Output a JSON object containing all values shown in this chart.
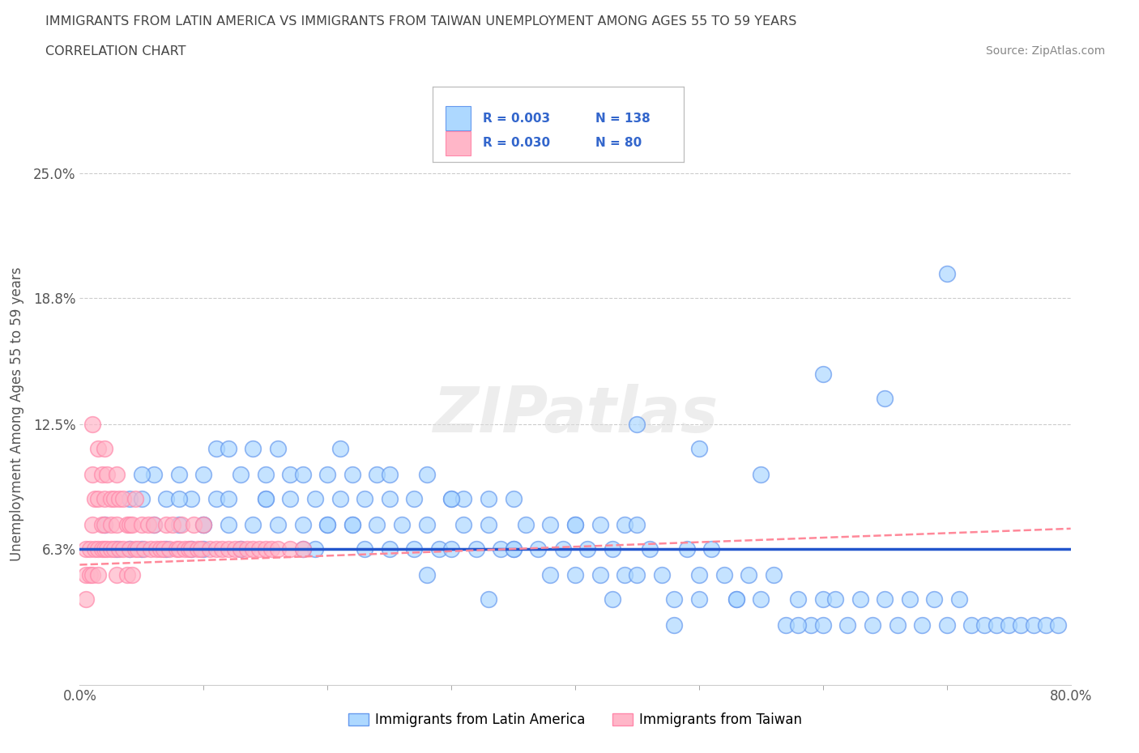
{
  "title_line1": "IMMIGRANTS FROM LATIN AMERICA VS IMMIGRANTS FROM TAIWAN UNEMPLOYMENT AMONG AGES 55 TO 59 YEARS",
  "title_line2": "CORRELATION CHART",
  "source_text": "Source: ZipAtlas.com",
  "ylabel": "Unemployment Among Ages 55 to 59 years",
  "xlim": [
    0.0,
    0.8
  ],
  "ylim": [
    -0.005,
    0.265
  ],
  "ytick_values": [
    0.0,
    0.063,
    0.125,
    0.188,
    0.25
  ],
  "ytick_labels": [
    "",
    "6.3%",
    "12.5%",
    "18.8%",
    "25.0%"
  ],
  "gridline_values": [
    0.063,
    0.125,
    0.188,
    0.25
  ],
  "legend_blue_label": "Immigrants from Latin America",
  "legend_pink_label": "Immigrants from Taiwan",
  "R_blue": "0.003",
  "N_blue": "138",
  "R_pink": "0.030",
  "N_pink": "80",
  "blue_line_y": 0.063,
  "pink_line_start_y": 0.055,
  "pink_line_end_y": 0.073,
  "blue_scatter_x": [
    0.02,
    0.03,
    0.04,
    0.04,
    0.05,
    0.05,
    0.06,
    0.06,
    0.07,
    0.07,
    0.08,
    0.08,
    0.09,
    0.09,
    0.1,
    0.1,
    0.1,
    0.11,
    0.11,
    0.12,
    0.12,
    0.13,
    0.13,
    0.14,
    0.14,
    0.15,
    0.15,
    0.16,
    0.16,
    0.17,
    0.17,
    0.18,
    0.18,
    0.19,
    0.19,
    0.2,
    0.2,
    0.21,
    0.21,
    0.22,
    0.22,
    0.23,
    0.23,
    0.24,
    0.24,
    0.25,
    0.25,
    0.26,
    0.27,
    0.27,
    0.28,
    0.28,
    0.29,
    0.3,
    0.3,
    0.31,
    0.31,
    0.32,
    0.33,
    0.33,
    0.34,
    0.35,
    0.35,
    0.36,
    0.37,
    0.38,
    0.39,
    0.4,
    0.4,
    0.41,
    0.42,
    0.42,
    0.43,
    0.44,
    0.44,
    0.45,
    0.45,
    0.46,
    0.47,
    0.48,
    0.49,
    0.5,
    0.5,
    0.51,
    0.52,
    0.53,
    0.54,
    0.55,
    0.56,
    0.57,
    0.58,
    0.59,
    0.6,
    0.6,
    0.61,
    0.62,
    0.63,
    0.64,
    0.65,
    0.66,
    0.67,
    0.68,
    0.69,
    0.7,
    0.71,
    0.72,
    0.73,
    0.74,
    0.75,
    0.76,
    0.77,
    0.78,
    0.79,
    0.6,
    0.65,
    0.7,
    0.5,
    0.55,
    0.4,
    0.45,
    0.35,
    0.3,
    0.25,
    0.2,
    0.15,
    0.1,
    0.05,
    0.08,
    0.12,
    0.18,
    0.22,
    0.28,
    0.33,
    0.38,
    0.43,
    0.48,
    0.53,
    0.58
  ],
  "blue_scatter_y": [
    0.075,
    0.063,
    0.088,
    0.063,
    0.088,
    0.063,
    0.075,
    0.1,
    0.088,
    0.063,
    0.075,
    0.1,
    0.088,
    0.063,
    0.1,
    0.075,
    0.063,
    0.088,
    0.113,
    0.075,
    0.088,
    0.1,
    0.063,
    0.113,
    0.075,
    0.1,
    0.088,
    0.113,
    0.075,
    0.1,
    0.088,
    0.075,
    0.1,
    0.088,
    0.063,
    0.1,
    0.075,
    0.088,
    0.113,
    0.1,
    0.075,
    0.088,
    0.063,
    0.1,
    0.075,
    0.088,
    0.063,
    0.075,
    0.088,
    0.063,
    0.1,
    0.075,
    0.063,
    0.088,
    0.063,
    0.075,
    0.088,
    0.063,
    0.088,
    0.075,
    0.063,
    0.088,
    0.063,
    0.075,
    0.063,
    0.075,
    0.063,
    0.075,
    0.05,
    0.063,
    0.075,
    0.05,
    0.063,
    0.075,
    0.05,
    0.075,
    0.05,
    0.063,
    0.05,
    0.038,
    0.063,
    0.05,
    0.038,
    0.063,
    0.05,
    0.038,
    0.05,
    0.038,
    0.05,
    0.025,
    0.038,
    0.025,
    0.038,
    0.025,
    0.038,
    0.025,
    0.038,
    0.025,
    0.038,
    0.025,
    0.038,
    0.025,
    0.038,
    0.025,
    0.038,
    0.025,
    0.025,
    0.025,
    0.025,
    0.025,
    0.025,
    0.025,
    0.025,
    0.15,
    0.138,
    0.2,
    0.113,
    0.1,
    0.075,
    0.125,
    0.063,
    0.088,
    0.1,
    0.075,
    0.088,
    0.075,
    0.1,
    0.088,
    0.113,
    0.063,
    0.075,
    0.05,
    0.038,
    0.05,
    0.038,
    0.025,
    0.038,
    0.025
  ],
  "pink_scatter_x": [
    0.005,
    0.005,
    0.005,
    0.008,
    0.008,
    0.01,
    0.01,
    0.01,
    0.01,
    0.012,
    0.012,
    0.015,
    0.015,
    0.015,
    0.015,
    0.018,
    0.018,
    0.018,
    0.02,
    0.02,
    0.02,
    0.02,
    0.022,
    0.022,
    0.025,
    0.025,
    0.025,
    0.028,
    0.028,
    0.03,
    0.03,
    0.03,
    0.032,
    0.032,
    0.035,
    0.035,
    0.038,
    0.038,
    0.04,
    0.04,
    0.042,
    0.042,
    0.045,
    0.045,
    0.047,
    0.05,
    0.052,
    0.055,
    0.057,
    0.06,
    0.062,
    0.065,
    0.068,
    0.07,
    0.072,
    0.075,
    0.078,
    0.08,
    0.082,
    0.085,
    0.088,
    0.09,
    0.092,
    0.095,
    0.098,
    0.1,
    0.105,
    0.11,
    0.115,
    0.12,
    0.125,
    0.13,
    0.135,
    0.14,
    0.145,
    0.15,
    0.155,
    0.16,
    0.17,
    0.18
  ],
  "pink_scatter_y": [
    0.063,
    0.05,
    0.038,
    0.063,
    0.05,
    0.125,
    0.1,
    0.075,
    0.05,
    0.088,
    0.063,
    0.113,
    0.088,
    0.063,
    0.05,
    0.1,
    0.075,
    0.063,
    0.113,
    0.088,
    0.075,
    0.063,
    0.1,
    0.063,
    0.088,
    0.075,
    0.063,
    0.088,
    0.063,
    0.1,
    0.075,
    0.05,
    0.088,
    0.063,
    0.088,
    0.063,
    0.075,
    0.05,
    0.075,
    0.063,
    0.075,
    0.05,
    0.088,
    0.063,
    0.063,
    0.075,
    0.063,
    0.075,
    0.063,
    0.075,
    0.063,
    0.063,
    0.063,
    0.075,
    0.063,
    0.075,
    0.063,
    0.063,
    0.075,
    0.063,
    0.063,
    0.063,
    0.075,
    0.063,
    0.063,
    0.075,
    0.063,
    0.063,
    0.063,
    0.063,
    0.063,
    0.063,
    0.063,
    0.063,
    0.063,
    0.063,
    0.063,
    0.063,
    0.063,
    0.063
  ]
}
